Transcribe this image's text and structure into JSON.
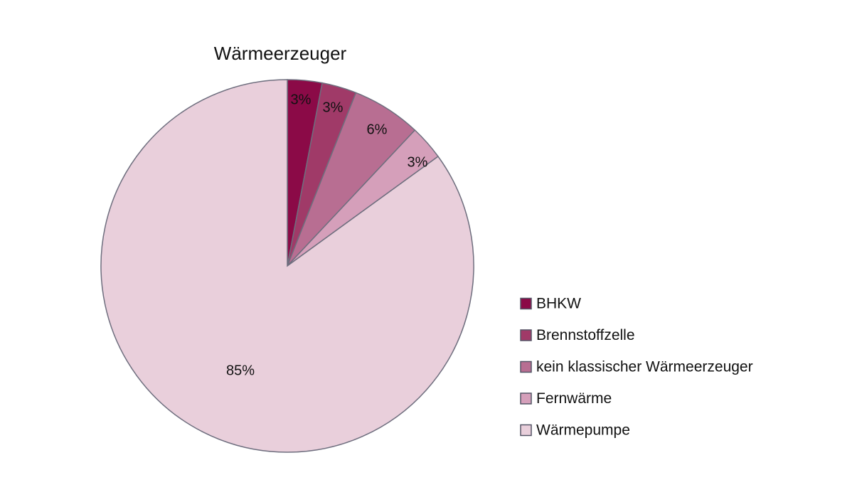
{
  "chart_data": {
    "type": "pie",
    "title": "Wärmeerzeuger",
    "legend_position": "right",
    "start_angle": "12 o'clock",
    "direction": "clockwise",
    "slices": [
      {
        "label": "BHKW",
        "value": 3,
        "display": "3%",
        "color": "#8b0a47"
      },
      {
        "label": "Brennstoffzelle",
        "value": 3,
        "display": "3%",
        "color": "#a03a68"
      },
      {
        "label": "kein klassischer Wärmeerzeuger",
        "value": 6,
        "display": "6%",
        "color": "#b86e92"
      },
      {
        "label": "Fernwärme",
        "value": 3,
        "display": "3%",
        "color": "#d59fba"
      },
      {
        "label": "Wärmepumpe",
        "value": 85,
        "display": "85%",
        "color": "#e9cfdb"
      }
    ]
  }
}
